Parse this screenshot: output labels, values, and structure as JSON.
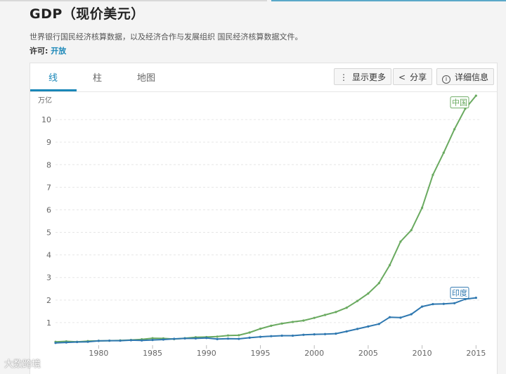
{
  "page": {
    "title": "GDP（现价美元）",
    "subtitle": "世界银行国民经济核算数据，以及经济合作与发展组织 国民经济核算数据文件。",
    "license_label": "许可:",
    "license_value": "开放"
  },
  "tabs": [
    {
      "label": "线",
      "active": true
    },
    {
      "label": "柱",
      "active": false
    },
    {
      "label": "地图",
      "active": false
    }
  ],
  "toolbar": {
    "more_label": "显示更多",
    "share_label": "分享",
    "details_label": "详细信息"
  },
  "watermark": "大数跨境",
  "colors": {
    "china": "#6aaa60",
    "india": "#2f78b0",
    "accent": "#1a87b8"
  },
  "chart_data": {
    "type": "line",
    "y_unit_label": "万亿",
    "xlim": [
      1976,
      2015.5
    ],
    "ylim": [
      0,
      11
    ],
    "x_ticks": [
      1980,
      1985,
      1990,
      1995,
      2000,
      2005,
      2010,
      2015
    ],
    "y_ticks": [
      1,
      2,
      3,
      4,
      5,
      6,
      7,
      8,
      9,
      10
    ],
    "grid": "horizontal-dashed",
    "series": [
      {
        "name": "中国",
        "color": "#6aaa60",
        "x": [
          1976,
          1977,
          1978,
          1979,
          1980,
          1981,
          1982,
          1983,
          1984,
          1985,
          1986,
          1987,
          1988,
          1989,
          1990,
          1991,
          1992,
          1993,
          1994,
          1995,
          1996,
          1997,
          1998,
          1999,
          2000,
          2001,
          2002,
          2003,
          2004,
          2005,
          2006,
          2007,
          2008,
          2009,
          2010,
          2011,
          2012,
          2013,
          2014,
          2015
        ],
        "values": [
          0.15,
          0.17,
          0.15,
          0.18,
          0.19,
          0.2,
          0.21,
          0.23,
          0.26,
          0.31,
          0.3,
          0.27,
          0.31,
          0.35,
          0.36,
          0.38,
          0.43,
          0.44,
          0.56,
          0.73,
          0.86,
          0.96,
          1.03,
          1.09,
          1.21,
          1.34,
          1.47,
          1.66,
          1.96,
          2.29,
          2.75,
          3.55,
          4.59,
          5.1,
          6.09,
          7.55,
          8.53,
          9.57,
          10.48,
          11.06
        ]
      },
      {
        "name": "印度",
        "color": "#2f78b0",
        "x": [
          1976,
          1977,
          1978,
          1979,
          1980,
          1981,
          1982,
          1983,
          1984,
          1985,
          1986,
          1987,
          1988,
          1989,
          1990,
          1991,
          1992,
          1993,
          1994,
          1995,
          1996,
          1997,
          1998,
          1999,
          2000,
          2001,
          2002,
          2003,
          2004,
          2005,
          2006,
          2007,
          2008,
          2009,
          2010,
          2011,
          2012,
          2013,
          2014,
          2015
        ],
        "values": [
          0.1,
          0.12,
          0.14,
          0.15,
          0.19,
          0.2,
          0.2,
          0.22,
          0.21,
          0.23,
          0.25,
          0.28,
          0.3,
          0.3,
          0.32,
          0.27,
          0.29,
          0.28,
          0.33,
          0.37,
          0.4,
          0.42,
          0.42,
          0.46,
          0.48,
          0.49,
          0.51,
          0.61,
          0.72,
          0.83,
          0.94,
          1.24,
          1.22,
          1.37,
          1.71,
          1.82,
          1.83,
          1.86,
          2.04,
          2.1
        ]
      }
    ]
  }
}
